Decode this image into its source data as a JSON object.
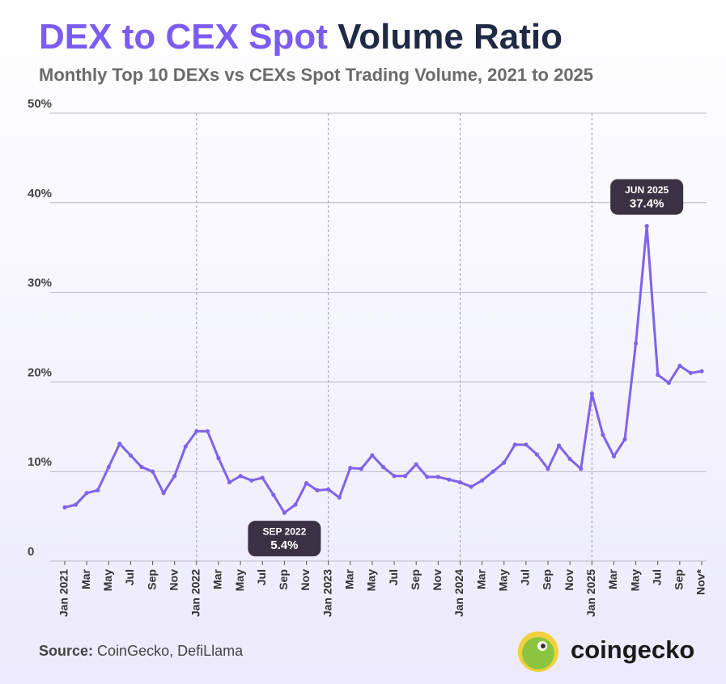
{
  "chart_data": {
    "type": "line",
    "title_highlight": "DEX to CEX Spot",
    "title": "Volume Ratio",
    "subtitle": "Monthly Top 10 DEXs vs CEXs Spot Trading Volume, 2021 to 2025",
    "source_label": "Source:",
    "source": "CoinGecko, DefiLlama",
    "brand": "coingecko",
    "categories": [
      "Jan 2021",
      null,
      "Mar",
      null,
      "May",
      null,
      "Jul",
      null,
      "Sep",
      null,
      "Nov",
      null,
      "Jan 2022",
      null,
      "Mar",
      null,
      "May",
      null,
      "Jul",
      null,
      "Sep",
      null,
      "Nov",
      null,
      "Jan 2023",
      null,
      "Mar",
      null,
      "May",
      null,
      "Jul",
      null,
      "Sep",
      null,
      "Nov",
      null,
      "Jan 2024",
      null,
      "Mar",
      null,
      "May",
      null,
      "Jul",
      null,
      "Sep",
      null,
      "Nov",
      null,
      "Jan 2025",
      null,
      "Mar",
      null,
      "May",
      null,
      "Jul",
      null,
      "Sep",
      null,
      "Nov*"
    ],
    "series": [
      {
        "name": "DEX to CEX Spot Volume Ratio",
        "color": "#7f63ea",
        "values": [
          6.0,
          6.3,
          7.6,
          7.9,
          10.5,
          13.1,
          11.8,
          10.5,
          10.0,
          7.6,
          9.5,
          12.8,
          14.5,
          14.5,
          11.5,
          8.8,
          9.5,
          9.0,
          9.3,
          7.4,
          5.4,
          6.3,
          8.7,
          7.9,
          8.0,
          7.1,
          10.4,
          10.3,
          11.8,
          10.5,
          9.5,
          9.5,
          10.8,
          9.4,
          9.4,
          9.1,
          8.8,
          8.3,
          9.0,
          10.0,
          11.0,
          13.0,
          13.0,
          11.9,
          10.3,
          12.9,
          11.4,
          10.3,
          18.7,
          14.1,
          11.7,
          13.6,
          24.3,
          37.4,
          20.8,
          19.9,
          21.8,
          21.0,
          21.2
        ],
        "value_labels": [
          null,
          null,
          null,
          null,
          null,
          null,
          null,
          null,
          null,
          null,
          null,
          null,
          null,
          null,
          null,
          null,
          null,
          null,
          null,
          null,
          "5.4%",
          null,
          null,
          null,
          null,
          null,
          null,
          null,
          null,
          null,
          null,
          null,
          null,
          null,
          null,
          null,
          null,
          null,
          null,
          null,
          null,
          null,
          null,
          null,
          null,
          null,
          null,
          null,
          null,
          null,
          null,
          null,
          null,
          "37.4%",
          null,
          null,
          null,
          null,
          null
        ],
        "value_titles": [
          null,
          null,
          null,
          null,
          null,
          null,
          null,
          null,
          null,
          null,
          null,
          null,
          null,
          null,
          null,
          null,
          null,
          null,
          null,
          null,
          "SEP 2022",
          null,
          null,
          null,
          null,
          null,
          null,
          null,
          null,
          null,
          null,
          null,
          null,
          null,
          null,
          null,
          null,
          null,
          null,
          null,
          null,
          null,
          null,
          null,
          null,
          null,
          null,
          null,
          null,
          null,
          null,
          null,
          null,
          "JUN 2025",
          null,
          null,
          null,
          null,
          null
        ]
      }
    ],
    "ylim": [
      0,
      50
    ],
    "yticks": [
      0,
      {
        "value": 10,
        "label": "10%"
      },
      {
        "value": 20,
        "label": "20%"
      },
      {
        "value": 30,
        "label": "30%"
      },
      {
        "value": 40,
        "label": "40%"
      },
      {
        "value": 50,
        "label": "50%"
      }
    ],
    "grid": true
  }
}
